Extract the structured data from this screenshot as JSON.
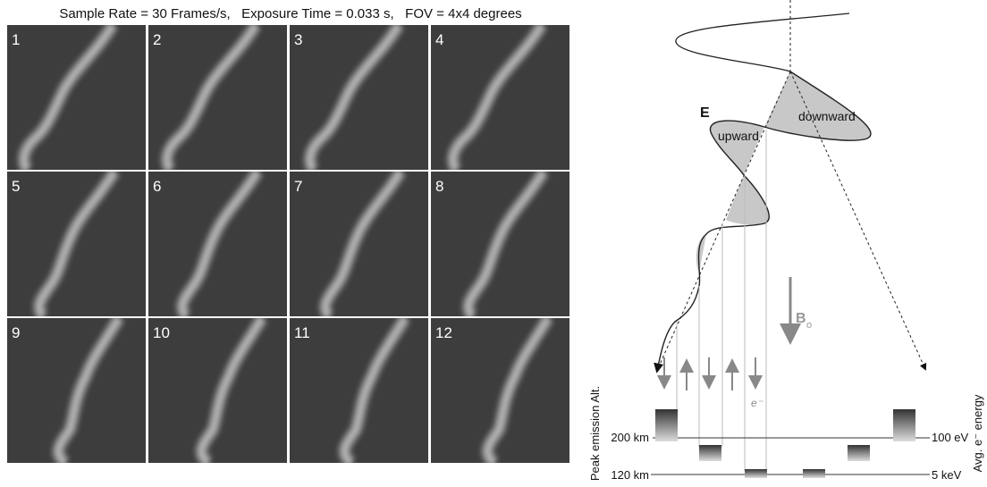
{
  "title": "Sample Rate = 30 Frames/s,   Exposure Time = 0.033 s,   FOV = 4x4 degrees",
  "frames": [
    "1",
    "2",
    "3",
    "4",
    "5",
    "6",
    "7",
    "8",
    "9",
    "10",
    "11",
    "12"
  ],
  "diagram": {
    "field_label": "E",
    "upward": "upward",
    "downward": "downward",
    "b_label": "B",
    "b_subscript": "o",
    "electron": "e⁻",
    "left_axis": "Peak emission Alt.",
    "right_axis": "Avg. e⁻ energy",
    "altitudes": [
      "200 km",
      "120 km"
    ],
    "energies": [
      "100 eV",
      "5 keV"
    ]
  }
}
